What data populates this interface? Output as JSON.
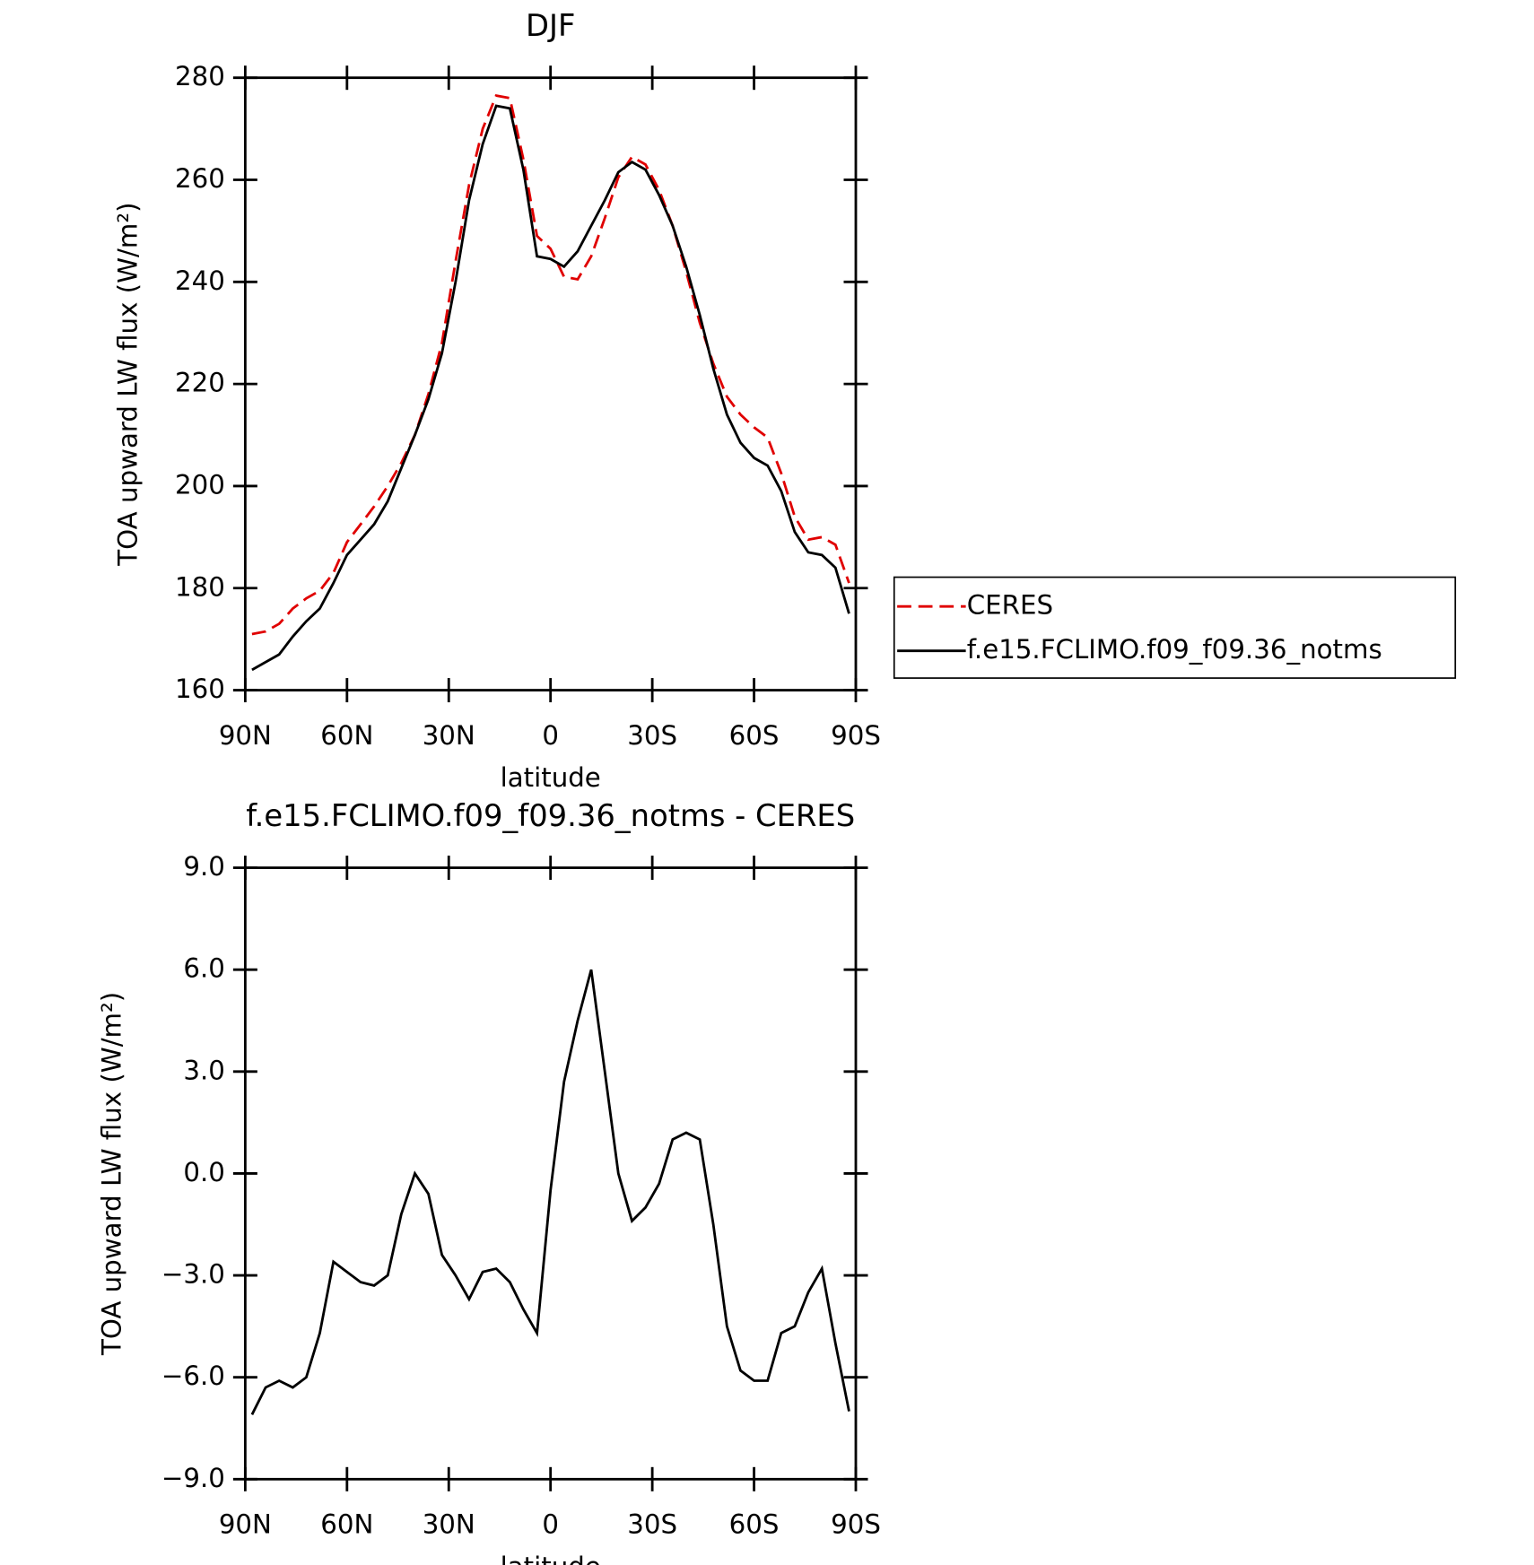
{
  "chart_data": [
    {
      "type": "line",
      "title": "DJF",
      "xlabel": "latitude",
      "ylabel": "TOA upward LW flux (W/m²)",
      "x": [
        88,
        84,
        80,
        76,
        72,
        68,
        64,
        60,
        56,
        52,
        48,
        44,
        40,
        36,
        32,
        28,
        24,
        20,
        16,
        12,
        8,
        4,
        0,
        -4,
        -8,
        -12,
        -16,
        -20,
        -24,
        -28,
        -32,
        -36,
        -40,
        -44,
        -48,
        -52,
        -56,
        -60,
        -64,
        -68,
        -72,
        -76,
        -80,
        -84,
        -88
      ],
      "series": [
        {
          "name": "CERES",
          "color": "#e00000",
          "dash": true,
          "values": [
            171,
            171.5,
            173,
            176,
            178,
            179.5,
            183,
            189,
            192.5,
            196,
            200,
            204.5,
            210,
            218,
            228,
            244,
            259,
            270,
            276.5,
            276,
            264,
            249,
            246.5,
            241,
            240.5,
            245,
            252.5,
            260.5,
            264.5,
            263,
            258,
            251,
            242,
            232,
            224,
            217.5,
            214,
            211.5,
            209.5,
            202.5,
            194,
            189.5,
            190,
            188.5,
            181
          ]
        },
        {
          "name": "f.e15.FCLIMO.f09_f09.36_notms",
          "color": "#000000",
          "dash": false,
          "values": [
            164,
            165.5,
            167,
            170.5,
            173.5,
            176,
            181,
            186.5,
            189.5,
            192.5,
            197,
            203.5,
            210,
            217,
            226,
            240,
            256,
            267,
            274.5,
            274,
            262,
            245,
            244.5,
            243,
            246,
            251,
            256,
            261.5,
            263.5,
            262,
            257,
            251,
            243,
            233.5,
            223,
            214,
            208.5,
            205.5,
            204,
            199,
            191,
            187,
            186.5,
            184,
            175
          ]
        }
      ],
      "xlim": [
        90,
        -90
      ],
      "xticks": [
        {
          "value": 90,
          "label": "90N"
        },
        {
          "value": 60,
          "label": "60N"
        },
        {
          "value": 30,
          "label": "30N"
        },
        0,
        {
          "value": -30,
          "label": "30S"
        },
        {
          "value": -60,
          "label": "60S"
        },
        {
          "value": -90,
          "label": "90S"
        }
      ],
      "ylim": [
        160,
        280
      ],
      "yticks": [
        160,
        180,
        200,
        220,
        240,
        260,
        280
      ],
      "legend": "right"
    },
    {
      "type": "line",
      "title": "f.e15.FCLIMO.f09_f09.36_notms - CERES",
      "xlabel": "latitude",
      "ylabel": "TOA upward LW flux (W/m²)",
      "x": [
        88,
        84,
        80,
        76,
        72,
        68,
        64,
        60,
        56,
        52,
        48,
        44,
        40,
        36,
        32,
        28,
        24,
        20,
        16,
        12,
        8,
        4,
        0,
        -4,
        -8,
        -12,
        -16,
        -20,
        -24,
        -28,
        -32,
        -36,
        -40,
        -44,
        -48,
        -52,
        -56,
        -60,
        -64,
        -68,
        -72,
        -76,
        -80,
        -84,
        -88
      ],
      "color": "#000000",
      "values": [
        -7.1,
        -6.3,
        -6.1,
        -6.3,
        -6.0,
        -4.7,
        -2.6,
        -2.9,
        -3.2,
        -3.3,
        -3.0,
        -1.2,
        0,
        -0.6,
        -2.4,
        -3.0,
        -3.7,
        -2.9,
        -2.8,
        -3.2,
        -4.0,
        -4.7,
        -0.5,
        2.7,
        4.5,
        6.0,
        3.0,
        0.0,
        -1.4,
        -1.0,
        -0.3,
        1.0,
        1.2,
        1.0,
        -1.5,
        -4.5,
        -5.8,
        -6.1,
        -6.1,
        -4.7,
        -4.5,
        -3.5,
        -2.8,
        -5.0,
        -7.0
      ],
      "xlim": [
        90,
        -90
      ],
      "xticks": [
        {
          "value": 90,
          "label": "90N"
        },
        {
          "value": 60,
          "label": "60N"
        },
        {
          "value": 30,
          "label": "30N"
        },
        0,
        {
          "value": -30,
          "label": "30S"
        },
        {
          "value": -60,
          "label": "60S"
        },
        {
          "value": -90,
          "label": "90S"
        }
      ],
      "ylim": [
        -9,
        9
      ],
      "yticks": [
        {
          "value": -9,
          "label": "−9.0"
        },
        {
          "value": -6,
          "label": "−6.0"
        },
        {
          "value": -3,
          "label": "−3.0"
        },
        {
          "value": 0,
          "label": "0.0"
        },
        {
          "value": 3,
          "label": "3.0"
        },
        {
          "value": 6,
          "label": "6.0"
        },
        {
          "value": 9,
          "label": "9.0"
        }
      ]
    }
  ]
}
